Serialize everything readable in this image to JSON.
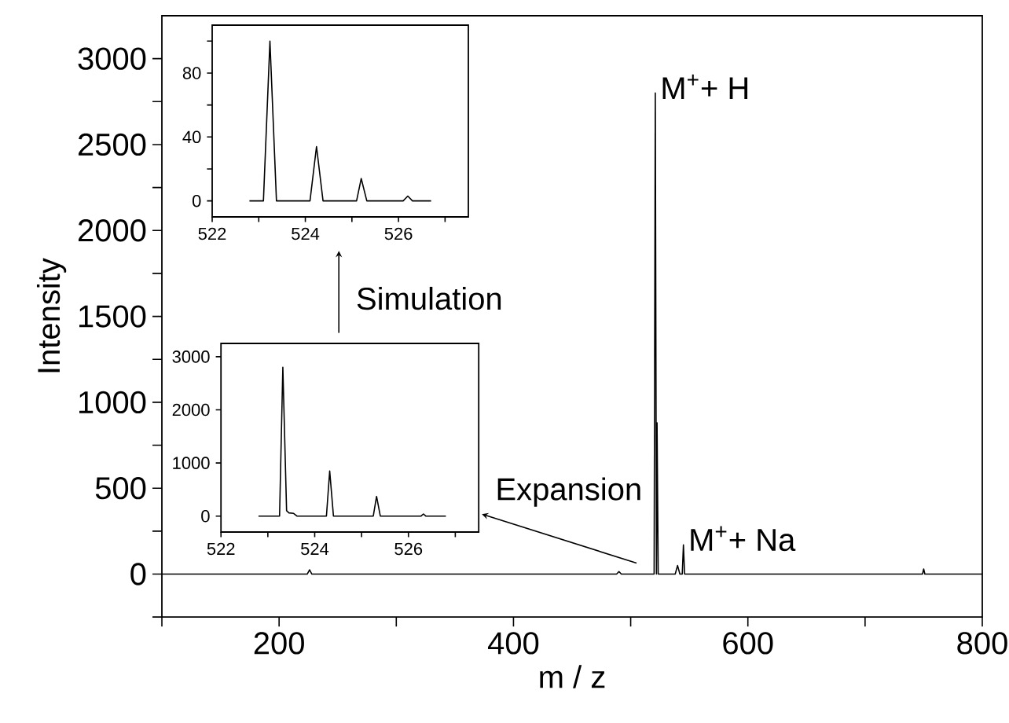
{
  "chart_data": [
    {
      "type": "line",
      "xlabel": "m / z",
      "ylabel": "Intensity",
      "xlim": [
        100,
        800
      ],
      "ylim": [
        -250,
        3250
      ],
      "xticks": [
        {
          "value": 100,
          "label": null
        },
        200,
        {
          "value": 300,
          "label": null
        },
        400,
        {
          "value": 500,
          "label": null
        },
        600,
        {
          "value": 700,
          "label": null
        },
        800
      ],
      "yticks": [
        {
          "value": -250,
          "label": null
        },
        0,
        {
          "value": 250,
          "label": null
        },
        500,
        {
          "value": 750,
          "label": null
        },
        1000,
        {
          "value": 1250,
          "label": null
        },
        1500,
        {
          "value": 1750,
          "label": null
        },
        2000,
        {
          "value": 2250,
          "label": null
        },
        2500,
        {
          "value": 2750,
          "label": null
        },
        3000
      ],
      "series": [
        {
          "color": "#000000",
          "x": [
            100,
            224,
            226,
            228,
            488,
            490,
            492,
            520,
            521,
            522,
            522.5,
            523.5,
            538,
            540,
            542,
            544,
            545,
            546,
            749,
            750,
            751,
            800
          ],
          "values": [
            0,
            0,
            25,
            0,
            0,
            15,
            0,
            0,
            2800,
            0,
            880,
            0,
            0,
            50,
            0,
            0,
            170,
            0,
            0,
            30,
            0,
            0
          ]
        }
      ],
      "annotations": [
        {
          "text": "M$^{+}$+ H",
          "x": 521,
          "y": 2800
        },
        {
          "text": "M$^{+}$+ Na",
          "x": 545,
          "y": 170
        },
        "Expansion",
        "Simulation"
      ]
    },
    {
      "type": "line",
      "xlim": [
        522,
        527.5
      ],
      "ylim": [
        -10,
        110
      ],
      "xticks": [
        522,
        {
          "value": 523,
          "label": null
        },
        524,
        {
          "value": 525,
          "label": null
        },
        526,
        {
          "value": 527,
          "label": null
        }
      ],
      "yticks": [
        0,
        {
          "value": 20,
          "label": null
        },
        40,
        {
          "value": 60,
          "label": null
        },
        80,
        {
          "value": 100,
          "label": null
        }
      ],
      "series": [
        {
          "color": "#000000",
          "x": [
            522.8,
            523.1,
            523.24,
            523.38,
            524.1,
            524.24,
            524.38,
            525.1,
            525.2,
            525.32,
            526.1,
            526.2,
            526.3,
            526.7
          ],
          "values": [
            0,
            0,
            100,
            0,
            0,
            34,
            0,
            0,
            14,
            0,
            0,
            3,
            0,
            0
          ]
        }
      ]
    },
    {
      "type": "line",
      "xlim": [
        522,
        527.5
      ],
      "ylim": [
        -300,
        3250
      ],
      "xticks": [
        522,
        {
          "value": 523,
          "label": null
        },
        524,
        {
          "value": 525,
          "label": null
        },
        526,
        {
          "value": 527,
          "label": null
        }
      ],
      "yticks": [
        0,
        1000,
        2000,
        3000
      ],
      "series": [
        {
          "color": "#000000",
          "x": [
            522.8,
            523.25,
            523.32,
            523.4,
            523.45,
            523.55,
            523.62,
            524.25,
            524.32,
            524.4,
            525.25,
            525.32,
            525.4,
            526.27,
            526.32,
            526.37,
            526.8
          ],
          "values": [
            0,
            0,
            2800,
            100,
            60,
            50,
            0,
            0,
            850,
            0,
            0,
            370,
            0,
            0,
            40,
            0,
            0
          ]
        }
      ]
    }
  ]
}
